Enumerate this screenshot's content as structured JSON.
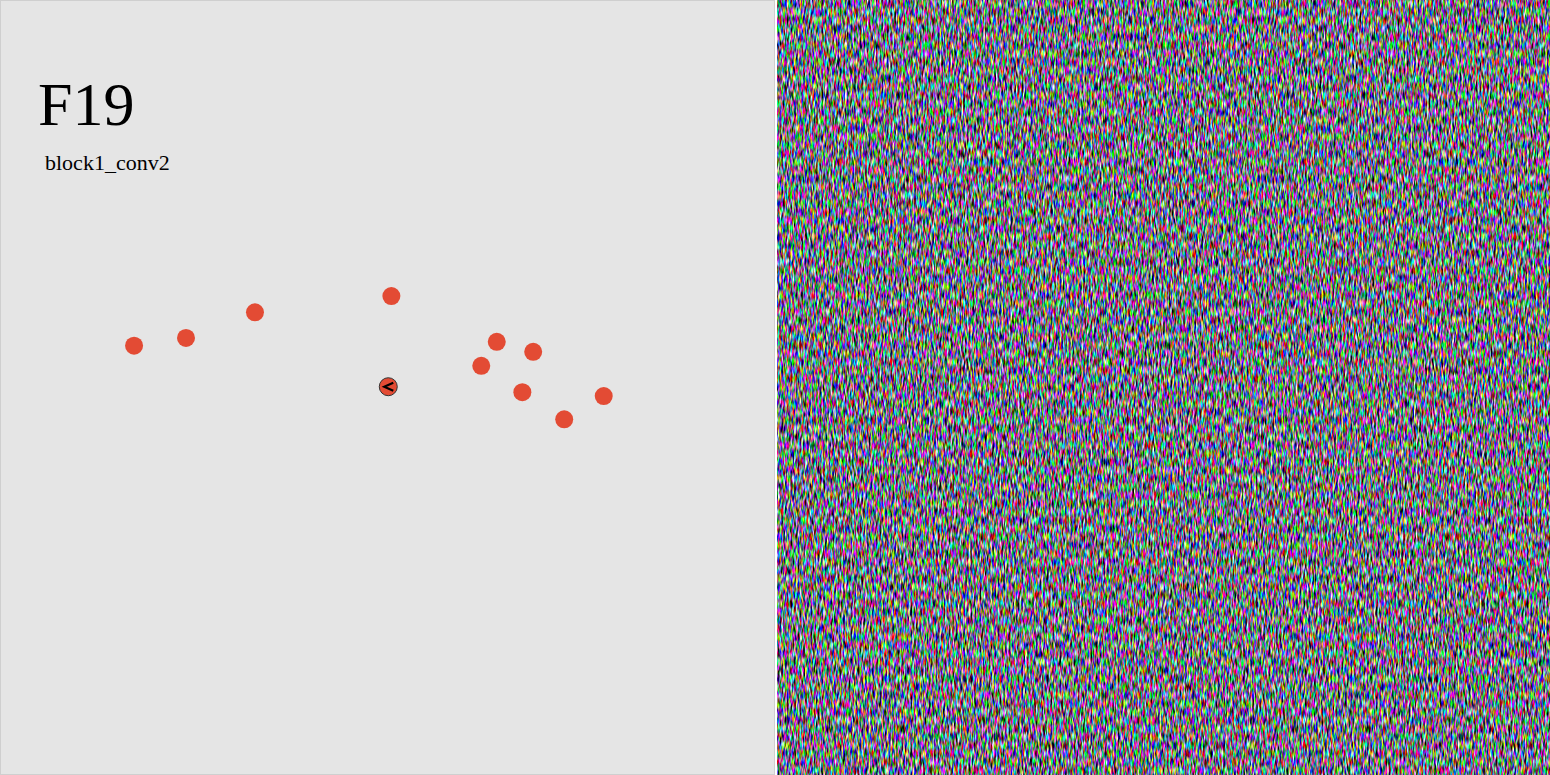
{
  "chart_data": {
    "type": "scatter",
    "title": "F19",
    "subtitle": "block1_conv2",
    "xlim": [
      0,
      10
    ],
    "ylim": [
      0,
      10
    ],
    "xticks": [],
    "yticks": [],
    "tick_labels": false,
    "grid": false,
    "series": [
      {
        "color": "#e34b34",
        "marker": "circle",
        "x": [
          1.73,
          2.4,
          3.29,
          5.05,
          6.41,
          6.88,
          6.21,
          6.74,
          7.28,
          7.79
        ],
        "values": [
          5.54,
          5.64,
          5.97,
          6.18,
          5.59,
          5.46,
          5.28,
          4.94,
          4.59,
          4.89
        ]
      },
      {
        "color": "#e34b34",
        "marker": "circle-arrow",
        "x": [
          5.01
        ],
        "values": [
          5.01
        ]
      }
    ]
  }
}
